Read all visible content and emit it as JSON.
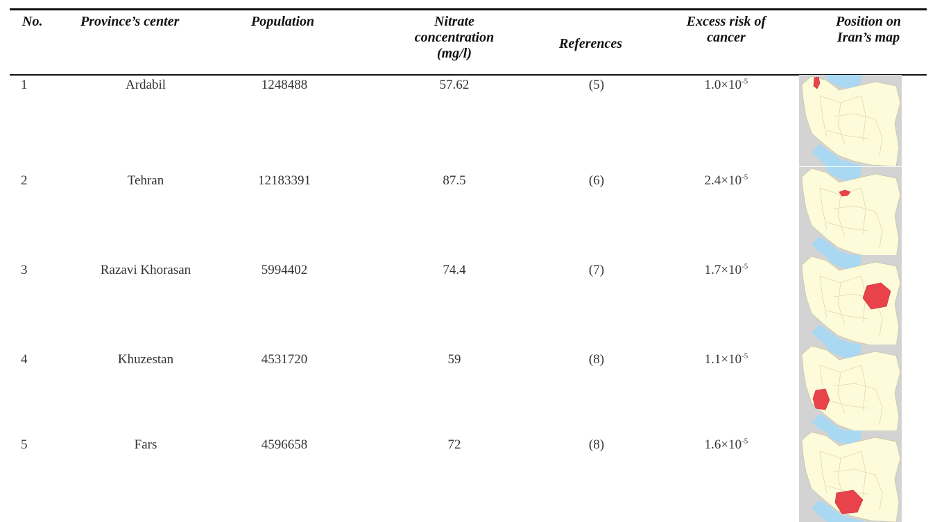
{
  "table": {
    "headers": {
      "no": "No.",
      "center": "Province’s center",
      "population": "Population",
      "nitrate": [
        "Nitrate",
        "concentration",
        "(mg/l)"
      ],
      "references": "References",
      "risk": [
        "Excess risk of",
        "cancer"
      ],
      "position": [
        "Position on",
        "Iran’s map"
      ]
    },
    "rows": [
      {
        "no": "1",
        "center": "Ardabil",
        "population": "1248488",
        "nitrate": "57.62",
        "ref": "(5)",
        "risk_base": "1.0×10",
        "risk_exp": "-5",
        "highlight": "ardabil"
      },
      {
        "no": "2",
        "center": "Tehran",
        "population": "12183391",
        "nitrate": "87.5",
        "ref": "(6)",
        "risk_base": "2.4×10",
        "risk_exp": "-5",
        "highlight": "tehran"
      },
      {
        "no": "3",
        "center": "Razavi Khorasan",
        "population": "5994402",
        "nitrate": "74.4",
        "ref": "(7)",
        "risk_base": "1.7×10",
        "risk_exp": "-5",
        "highlight": "khorasan"
      },
      {
        "no": "4",
        "center": "Khuzestan",
        "population": "4531720",
        "nitrate": "59",
        "ref": "(8)",
        "risk_base": "1.1×10",
        "risk_exp": "-5",
        "highlight": "khuzestan"
      },
      {
        "no": "5",
        "center": "Fars",
        "population": "4596658",
        "nitrate": "72",
        "ref": "(8)",
        "risk_base": "1.6×10",
        "risk_exp": "-5",
        "highlight": "fars"
      }
    ]
  },
  "colors": {
    "land": "#fdfbd9",
    "sea": "#a9d8f2",
    "highlight": "#e8424b",
    "neighbor": "#d3d3d3"
  }
}
